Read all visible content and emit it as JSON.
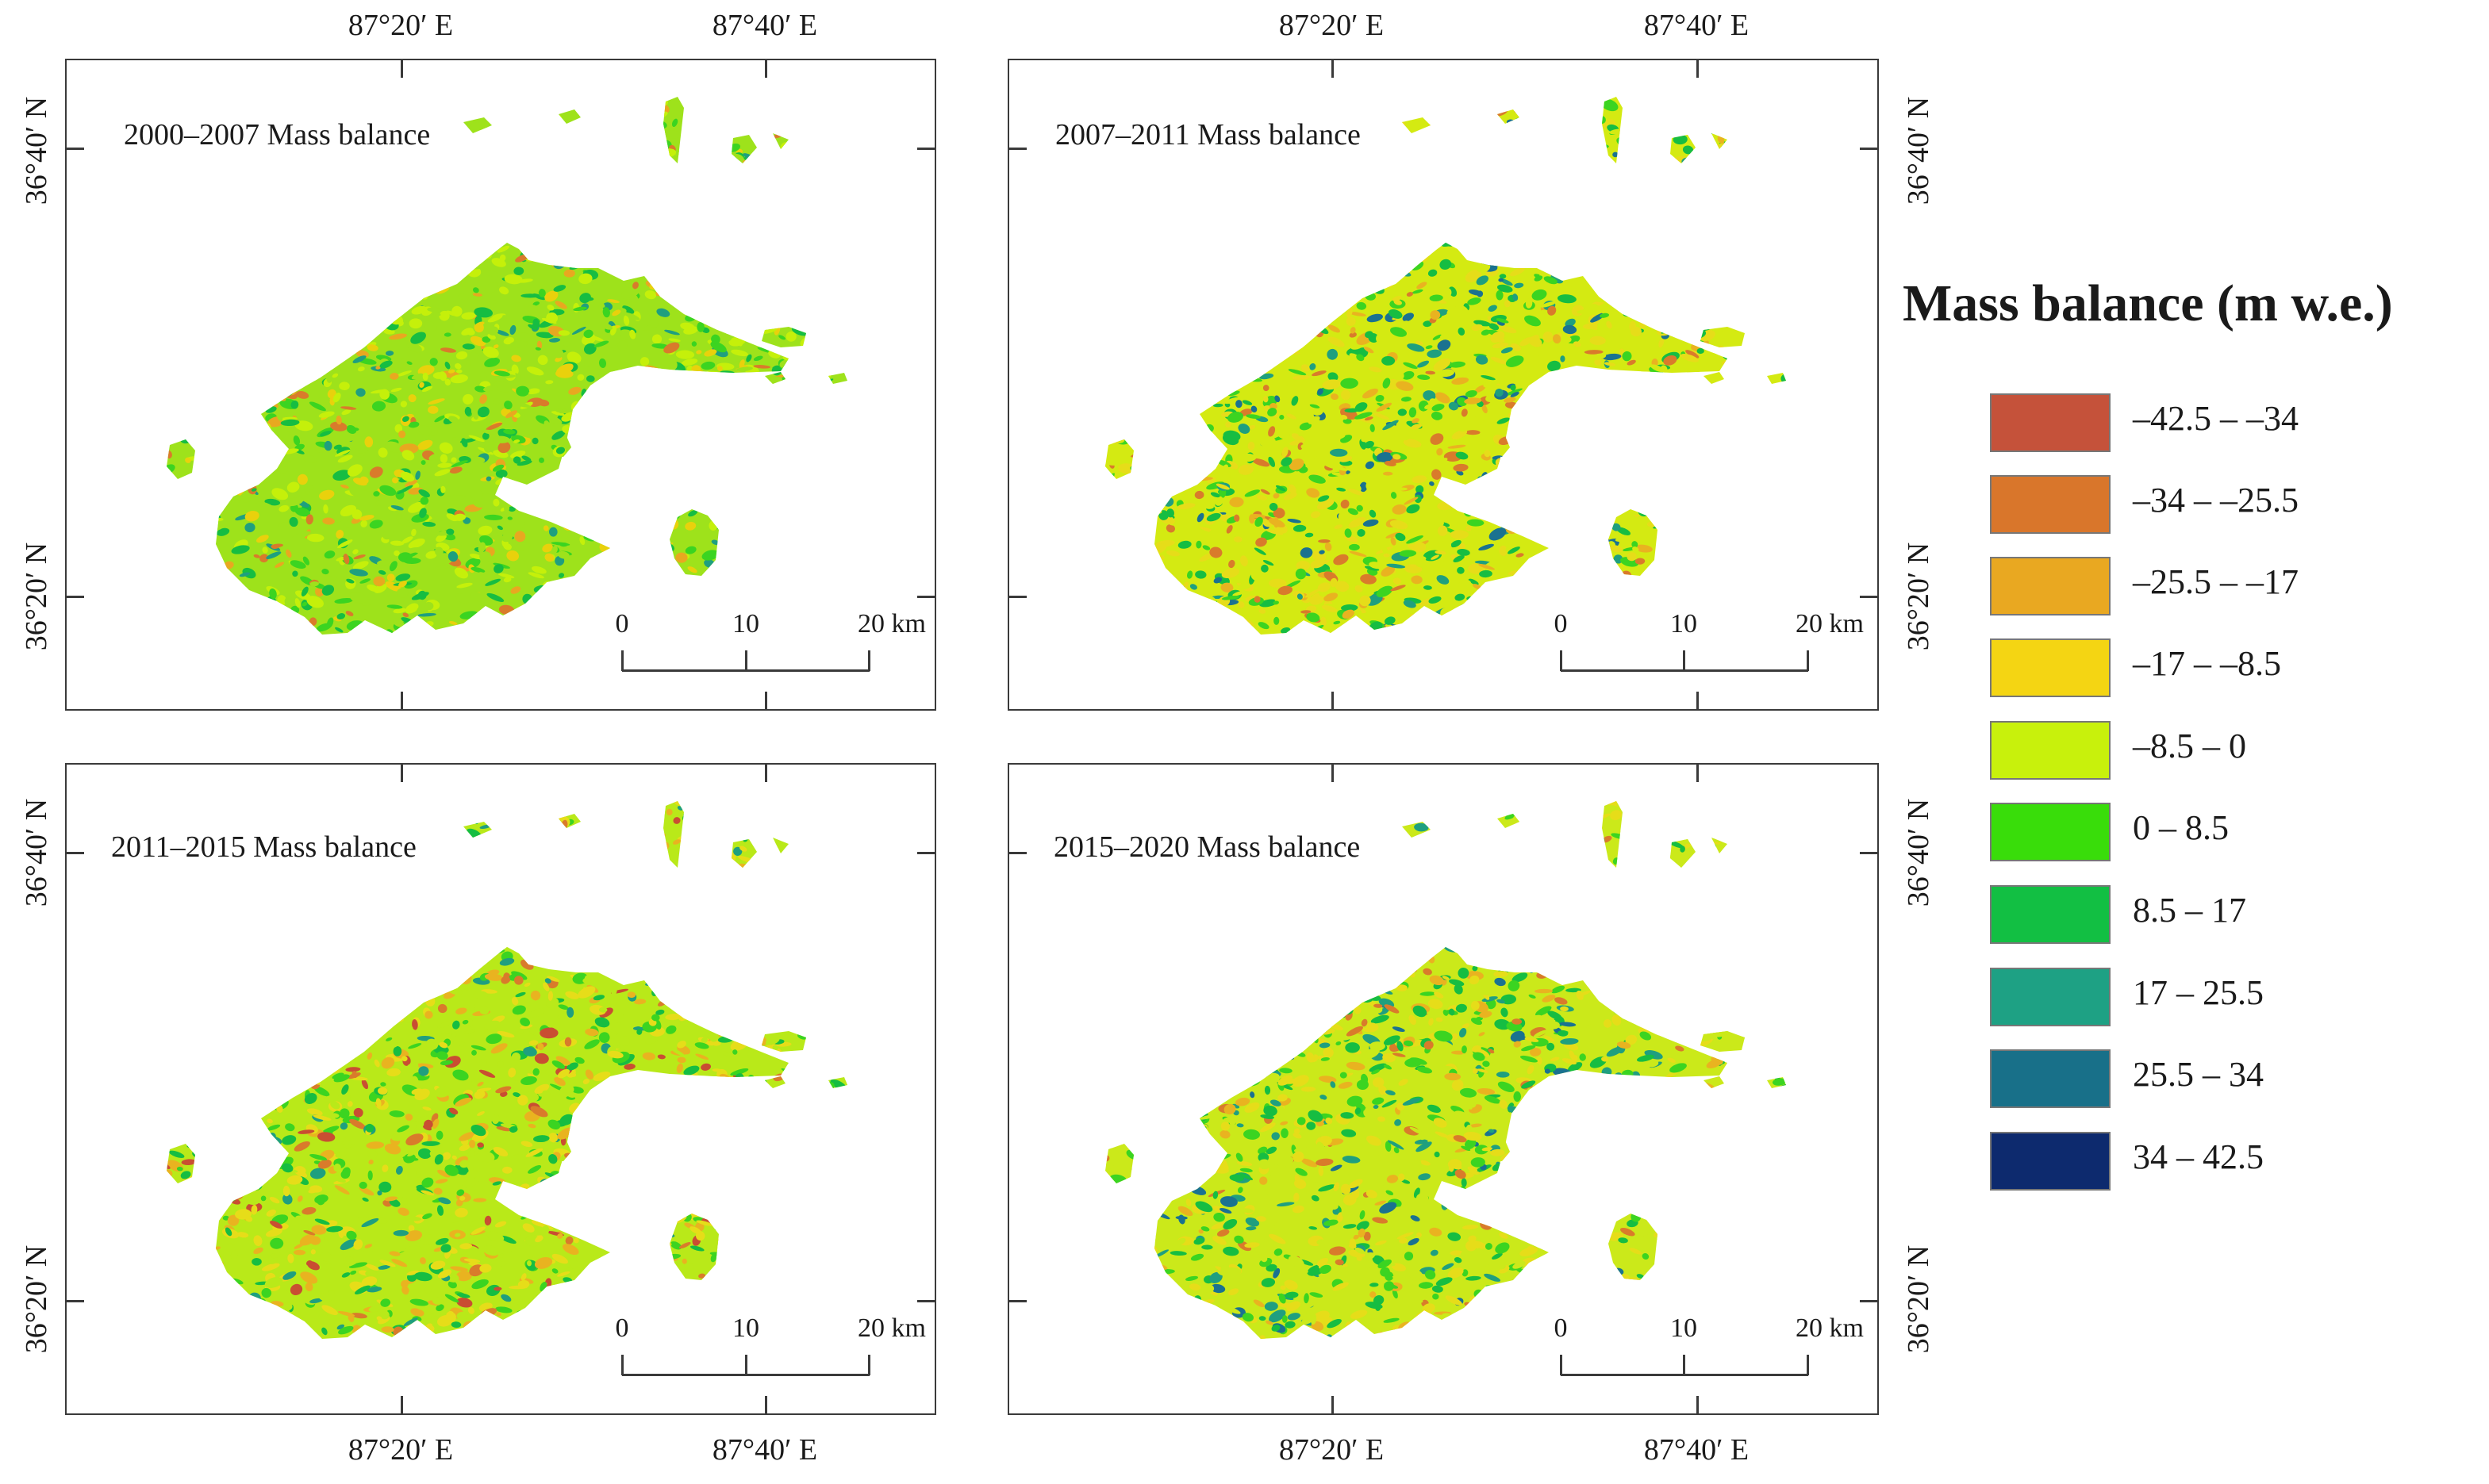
{
  "panels": [
    {
      "title": "2000–2007 Mass balance",
      "palette": [
        "#9ee21b",
        "#c5f00a",
        "#3bd421",
        "#16bd42",
        "#e9d10c",
        "#e8a820",
        "#d97b2b",
        "#1f9f7f"
      ]
    },
    {
      "title": "2007–2011 Mass balance",
      "palette": [
        "#d4ea12",
        "#e6dd19",
        "#3bd421",
        "#16bd42",
        "#e9b320",
        "#d97b2b",
        "#1f9f7f",
        "#1a7290"
      ]
    },
    {
      "title": "2011–2015 Mass balance",
      "palette": [
        "#b9e919",
        "#e6dd19",
        "#e9b320",
        "#3bd421",
        "#16bd42",
        "#d97b2b",
        "#1f9f7f",
        "#c94e32"
      ]
    },
    {
      "title": "2015–2020 Mass balance",
      "palette": [
        "#cbe91a",
        "#e6dd19",
        "#3bd421",
        "#16bd42",
        "#1f9f7f",
        "#e9b320",
        "#1a7290",
        "#d97b2b"
      ]
    }
  ],
  "axes": {
    "lon_labels": [
      "87°20′ E",
      "87°40′ E"
    ],
    "lat_labels": [
      "36°40′ N",
      "36°20′ N"
    ]
  },
  "scale_bar": {
    "labels": [
      "0",
      "10",
      "20 km"
    ]
  },
  "legend": {
    "title": "Mass balance  (m w.e.)",
    "items": [
      {
        "label": "–42.5 – –34",
        "color": "#c5523a"
      },
      {
        "label": "–34 – –25.5",
        "color": "#d9762b"
      },
      {
        "label": "–25.5 – –17",
        "color": "#e9a821"
      },
      {
        "label": "–17 – –8.5",
        "color": "#f4d513"
      },
      {
        "label": "–8.5 – 0",
        "color": "#c8f10c"
      },
      {
        "label": "0 – 8.5",
        "color": "#39dd0a"
      },
      {
        "label": "8.5 – 17",
        "color": "#12bf43"
      },
      {
        "label": "17 – 25.5",
        "color": "#1ea184"
      },
      {
        "label": "25.5 – 34",
        "color": "#187089"
      },
      {
        "label": "34 – 42.5",
        "color": "#0d2a6e"
      }
    ]
  }
}
